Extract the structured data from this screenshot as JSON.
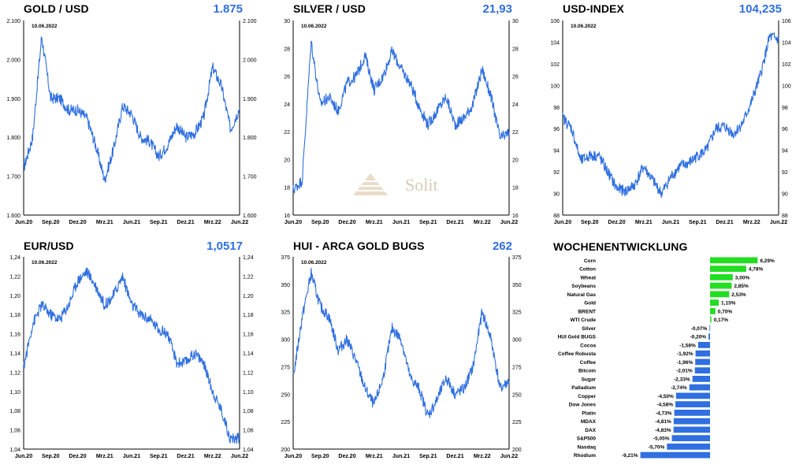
{
  "watermark": {
    "text": "Solit"
  },
  "colors": {
    "line": "#2f6fe0",
    "positive": "#22dd22",
    "negative": "#2f6fe0",
    "value_text": "#2f6fe0"
  },
  "chart_data": [
    {
      "type": "line",
      "title": "GOLD / USD",
      "current_value": "1.875",
      "date_label": "10.06.2022",
      "x_ticks": [
        "Jun.20",
        "Sep.20",
        "Dez.20",
        "Mrz.21",
        "Jun.21",
        "Sep.21",
        "Dez.21",
        "Mrz.22",
        "Jun.22"
      ],
      "y_ticks": [
        "1.600",
        "1.700",
        "1.800",
        "1.900",
        "2.000",
        "2.100"
      ],
      "ylim": [
        1600,
        2100
      ],
      "dual_y_axis": true,
      "series": [
        {
          "x": [
            "2020-06",
            "2020-07",
            "2020-08",
            "2020-09",
            "2020-10",
            "2020-11",
            "2020-12",
            "2021-01",
            "2021-02",
            "2021-03",
            "2021-04",
            "2021-05",
            "2021-06",
            "2021-07",
            "2021-08",
            "2021-09",
            "2021-10",
            "2021-11",
            "2021-12",
            "2022-01",
            "2022-02",
            "2022-03",
            "2022-04",
            "2022-05",
            "2022-06"
          ],
          "values": [
            1720,
            1800,
            2060,
            1900,
            1900,
            1870,
            1870,
            1850,
            1780,
            1690,
            1770,
            1880,
            1860,
            1800,
            1790,
            1750,
            1780,
            1830,
            1800,
            1810,
            1850,
            1980,
            1930,
            1820,
            1875
          ]
        }
      ]
    },
    {
      "type": "line",
      "title": "SILVER / USD",
      "current_value": "21,93",
      "date_label": "10.06.2022",
      "x_ticks": [
        "Jun.20",
        "Sep.20",
        "Dez.20",
        "Mrz.21",
        "Jun.21",
        "Sep.21",
        "Dez.21",
        "Mrz.22",
        "Jun.22"
      ],
      "y_ticks": [
        "16",
        "18",
        "20",
        "22",
        "24",
        "26",
        "28",
        "30"
      ],
      "ylim": [
        16,
        30
      ],
      "dual_y_axis": true,
      "series": [
        {
          "x": [
            "2020-06",
            "2020-07",
            "2020-08",
            "2020-09",
            "2020-10",
            "2020-11",
            "2020-12",
            "2021-01",
            "2021-02",
            "2021-03",
            "2021-04",
            "2021-05",
            "2021-06",
            "2021-07",
            "2021-08",
            "2021-09",
            "2021-10",
            "2021-11",
            "2021-12",
            "2022-01",
            "2022-02",
            "2022-03",
            "2022-04",
            "2022-05",
            "2022-06"
          ],
          "values": [
            17.8,
            18.5,
            28.5,
            24.0,
            24.5,
            23.5,
            25.5,
            26.0,
            27.5,
            25.0,
            26.0,
            27.8,
            26.5,
            25.5,
            23.8,
            22.5,
            23.5,
            24.5,
            22.5,
            23.0,
            24.0,
            26.5,
            24.5,
            21.5,
            21.93
          ]
        }
      ]
    },
    {
      "type": "line",
      "title": "USD-INDEX",
      "current_value": "104,235",
      "date_label": "10.06.2022",
      "x_ticks": [
        "Jun.20",
        "Sep.20",
        "Dez.20",
        "Mrz.21",
        "Jun.21",
        "Sep.21",
        "Dez.21",
        "Mrz.22",
        "Jun.22"
      ],
      "y_ticks": [
        "88",
        "90",
        "92",
        "94",
        "96",
        "98",
        "100",
        "102",
        "104",
        "106"
      ],
      "ylim": [
        88,
        106
      ],
      "dual_y_axis": true,
      "series": [
        {
          "x": [
            "2020-06",
            "2020-07",
            "2020-08",
            "2020-09",
            "2020-10",
            "2020-11",
            "2020-12",
            "2021-01",
            "2021-02",
            "2021-03",
            "2021-04",
            "2021-05",
            "2021-06",
            "2021-07",
            "2021-08",
            "2021-09",
            "2021-10",
            "2021-11",
            "2021-12",
            "2022-01",
            "2022-02",
            "2022-03",
            "2022-04",
            "2022-05",
            "2022-06"
          ],
          "values": [
            97,
            96,
            93,
            93.5,
            93.5,
            92,
            90.5,
            90.2,
            90.8,
            92.5,
            91.2,
            90,
            91.5,
            92.5,
            92.8,
            93.5,
            94,
            96,
            96.2,
            95.5,
            96.5,
            98.5,
            101,
            104.5,
            104.235
          ]
        }
      ]
    },
    {
      "type": "line",
      "title": "EUR/USD",
      "current_value": "1,0517",
      "date_label": "10.06.2022",
      "x_ticks": [
        "Jun.20",
        "Sep.20",
        "Dez.20",
        "Mrz.21",
        "Jun.21",
        "Sep.21",
        "Dez.21",
        "Mrz.22",
        "Jun.22"
      ],
      "y_ticks": [
        "1,04",
        "1,06",
        "1,08",
        "1,10",
        "1,12",
        "1,14",
        "1,16",
        "1,18",
        "1,20",
        "1,22",
        "1,24"
      ],
      "ylim": [
        1.04,
        1.24
      ],
      "dual_y_axis": true,
      "series": [
        {
          "x": [
            "2020-06",
            "2020-07",
            "2020-08",
            "2020-09",
            "2020-10",
            "2020-11",
            "2020-12",
            "2021-01",
            "2021-02",
            "2021-03",
            "2021-04",
            "2021-05",
            "2021-06",
            "2021-07",
            "2021-08",
            "2021-09",
            "2021-10",
            "2021-11",
            "2021-12",
            "2022-01",
            "2022-02",
            "2022-03",
            "2022-04",
            "2022-05",
            "2022-06"
          ],
          "values": [
            1.125,
            1.17,
            1.19,
            1.18,
            1.175,
            1.19,
            1.215,
            1.225,
            1.21,
            1.19,
            1.2,
            1.22,
            1.19,
            1.18,
            1.175,
            1.165,
            1.16,
            1.13,
            1.13,
            1.14,
            1.13,
            1.1,
            1.08,
            1.05,
            1.0517
          ]
        }
      ]
    },
    {
      "type": "line",
      "title": "HUI - ARCA GOLD BUGS",
      "current_value": "262",
      "date_label": "10.06.2022",
      "x_ticks": [
        "Jun.20",
        "Sep.20",
        "Dez.20",
        "Mrz.21",
        "Jun.21",
        "Sep.21",
        "Dez.21",
        "Mrz.22",
        "Jun.22"
      ],
      "y_ticks": [
        "200",
        "225",
        "250",
        "275",
        "300",
        "325",
        "350",
        "375"
      ],
      "ylim": [
        200,
        375
      ],
      "dual_y_axis": true,
      "series": [
        {
          "x": [
            "2020-06",
            "2020-07",
            "2020-08",
            "2020-09",
            "2020-10",
            "2020-11",
            "2020-12",
            "2021-01",
            "2021-02",
            "2021-03",
            "2021-04",
            "2021-05",
            "2021-06",
            "2021-07",
            "2021-08",
            "2021-09",
            "2021-10",
            "2021-11",
            "2021-12",
            "2022-01",
            "2022-02",
            "2022-03",
            "2022-04",
            "2022-05",
            "2022-06"
          ],
          "values": [
            265,
            320,
            360,
            330,
            320,
            290,
            300,
            280,
            255,
            240,
            265,
            310,
            300,
            265,
            255,
            230,
            245,
            265,
            250,
            255,
            275,
            325,
            300,
            255,
            262
          ]
        }
      ]
    },
    {
      "type": "bar",
      "orientation": "horizontal",
      "title": "WOCHENENTWICKLUNG",
      "categories": [
        "Corn",
        "Cotton",
        "Wheat",
        "Soybeans",
        "Natural Gas",
        "Gold",
        "BRENT",
        "WTI Crude",
        "Silver",
        "HUI Gold BUGS",
        "Cocoa",
        "Coffee Robusta",
        "Coffee",
        "Bitcoin",
        "Sugar",
        "Palladium",
        "Copper",
        "Dow Jones",
        "Platin",
        "MDAX",
        "DAX",
        "S&P500",
        "Nasdaq",
        "Rhodium"
      ],
      "values": [
        6.29,
        4.78,
        3.0,
        2.85,
        2.53,
        1.15,
        0.7,
        0.17,
        -0.07,
        -0.2,
        -1.58,
        -1.92,
        -1.96,
        -2.01,
        -2.33,
        -2.74,
        -4.5,
        -4.58,
        -4.73,
        -4.81,
        -4.83,
        -5.05,
        -5.7,
        -9.21
      ],
      "value_labels": [
        "6,29%",
        "4,78%",
        "3,00%",
        "2,85%",
        "2,53%",
        "1,15%",
        "0,70%",
        "0,17%",
        "-0,07%",
        "-0,20%",
        "-1,58%",
        "-1,92%",
        "-1,96%",
        "-2,01%",
        "-2,33%",
        "-2,74%",
        "-4,50%",
        "-4,58%",
        "-4,73%",
        "-4,81%",
        "-4,83%",
        "-5,05%",
        "-5,70%",
        "-9,21%"
      ]
    }
  ]
}
